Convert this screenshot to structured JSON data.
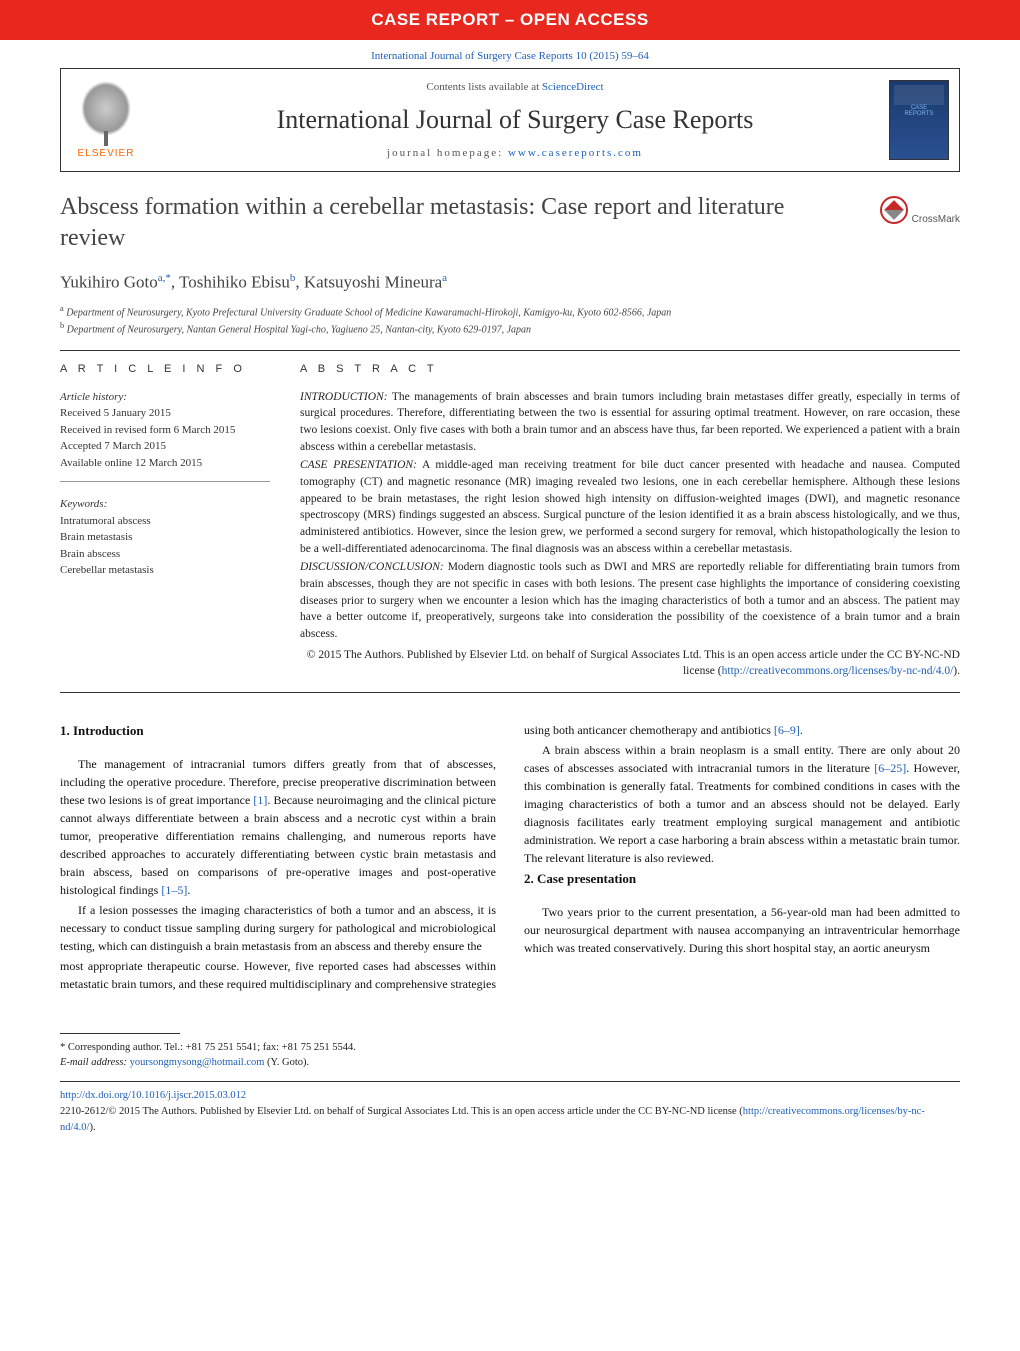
{
  "banner": "CASE REPORT – OPEN ACCESS",
  "citation": "International Journal of Surgery Case Reports 10 (2015) 59–64",
  "header": {
    "contents_prefix": "Contents lists available at ",
    "contents_link": "ScienceDirect",
    "journal_title": "International Journal of Surgery Case Reports",
    "homepage_prefix": "journal homepage: ",
    "homepage_link": "www.casereports.com",
    "elsevier_label": "ELSEVIER"
  },
  "crossmark_label": "CrossMark",
  "article": {
    "title": "Abscess formation within a cerebellar metastasis: Case report and literature review",
    "authors_html": "Yukihiro Goto<sup>a,*</sup>, Toshihiko Ebisu<sup>b</sup>, Katsuyoshi Mineura<sup>a</sup>",
    "affiliations": [
      "a Department of Neurosurgery, Kyoto Prefectural University Graduate School of Medicine Kawaramachi-Hirokoji, Kamigyo-ku, Kyoto 602-8566, Japan",
      "b Department of Neurosurgery, Nantan General Hospital Yagi-cho, Yagiueno 25, Nantan-city, Kyoto 629-0197, Japan"
    ]
  },
  "article_info": {
    "heading": "a r t i c l e   i n f o",
    "history_label": "Article history:",
    "history": [
      "Received 5 January 2015",
      "Received in revised form 6 March 2015",
      "Accepted 7 March 2015",
      "Available online 12 March 2015"
    ],
    "keywords_label": "Keywords:",
    "keywords": [
      "Intratumoral abscess",
      "Brain metastasis",
      "Brain abscess",
      "Cerebellar metastasis"
    ]
  },
  "abstract": {
    "heading": "a b s t r a c t",
    "intro_label": "INTRODUCTION:",
    "intro": " The managements of brain abscesses and brain tumors including brain metastases differ greatly, especially in terms of surgical procedures. Therefore, differentiating between the two is essential for assuring optimal treatment. However, on rare occasion, these two lesions coexist. Only five cases with both a brain tumor and an abscess have thus, far been reported. We experienced a patient with a brain abscess within a cerebellar metastasis.",
    "case_label": "CASE PRESENTATION:",
    "case": " A middle-aged man receiving treatment for bile duct cancer presented with headache and nausea. Computed tomography (CT) and magnetic resonance (MR) imaging revealed two lesions, one in each cerebellar hemisphere. Although these lesions appeared to be brain metastases, the right lesion showed high intensity on diffusion-weighted images (DWI), and magnetic resonance spectroscopy (MRS) findings suggested an abscess. Surgical puncture of the lesion identified it as a brain abscess histologically, and we thus, administered antibiotics. However, since the lesion grew, we performed a second surgery for removal, which histopathologically the lesion to be a well-differentiated adenocarcinoma. The final diagnosis was an abscess within a cerebellar metastasis.",
    "disc_label": "DISCUSSION/CONCLUSION:",
    "disc": " Modern diagnostic tools such as DWI and MRS are reportedly reliable for differentiating brain tumors from brain abscesses, though they are not specific in cases with both lesions. The present case highlights the importance of considering coexisting diseases prior to surgery when we encounter a lesion which has the imaging characteristics of both a tumor and an abscess. The patient may have a better outcome if, preoperatively, surgeons take into consideration the possibility of the coexistence of a brain tumor and a brain abscess.",
    "copyright": "© 2015 The Authors. Published by Elsevier Ltd. on behalf of Surgical Associates Ltd. This is an open access article under the CC BY-NC-ND license (",
    "cc_link": "http://creativecommons.org/licenses/by-nc-nd/4.0/",
    "copyright_end": ")."
  },
  "body": {
    "s1_title": "1. Introduction",
    "s1_p1": "The management of intracranial tumors differs greatly from that of abscesses, including the operative procedure. Therefore, precise preoperative discrimination between these two lesions is of great importance ",
    "s1_p1_ref": "[1]",
    "s1_p1b": ". Because neuroimaging and the clinical picture cannot always differentiate between a brain abscess and a necrotic cyst within a brain tumor, preoperative differentiation remains challenging, and numerous reports have described approaches to accurately differentiating between cystic brain metastasis and brain abscess, based on comparisons of pre-operative images and post-operative histological findings ",
    "s1_p1_ref2": "[1–5]",
    "s1_p1c": ".",
    "s1_p2": "If a lesion possesses the imaging characteristics of both a tumor and an abscess, it is necessary to conduct tissue sampling during surgery for pathological and microbiological testing, which can distinguish a brain metastasis from an abscess and thereby ensure the",
    "s1_p3": "most appropriate therapeutic course. However, five reported cases had abscesses within metastatic brain tumors, and these required multidisciplinary and comprehensive strategies using both anticancer chemotherapy and antibiotics ",
    "s1_p3_ref": "[6–9]",
    "s1_p3b": ".",
    "s1_p4": "A brain abscess within a brain neoplasm is a small entity. There are only about 20 cases of abscesses associated with intracranial tumors in the literature ",
    "s1_p4_ref": "[6–25]",
    "s1_p4b": ". However, this combination is generally fatal. Treatments for combined conditions in cases with the imaging characteristics of both a tumor and an abscess should not be delayed. Early diagnosis facilitates early treatment employing surgical management and antibiotic administration. We report a case harboring a brain abscess within a metastatic brain tumor. The relevant literature is also reviewed.",
    "s2_title": "2. Case presentation",
    "s2_p1": "Two years prior to the current presentation, a 56-year-old man had been admitted to our neurosurgical department with nausea accompanying an intraventricular hemorrhage which was treated conservatively. During this short hospital stay, an aortic aneurysm"
  },
  "footnote": {
    "corr": "* Corresponding author. Tel.: +81 75 251 5541; fax: +81 75 251 5544.",
    "email_label": "E-mail address: ",
    "email": "yoursongmysong@hotmail.com",
    "email_suffix": " (Y. Goto)."
  },
  "bottom": {
    "doi": "http://dx.doi.org/10.1016/j.ijscr.2015.03.012",
    "issn_line": "2210-2612/© 2015 The Authors. Published by Elsevier Ltd. on behalf of Surgical Associates Ltd. This is an open access article under the CC BY-NC-ND license (",
    "cc_link": "http://creativecommons.org/licenses/by-nc-nd/4.0/",
    "issn_end": ")."
  },
  "colors": {
    "banner_bg": "#e8281e",
    "link": "#2060b8",
    "elsevier_orange": "#ff6600"
  }
}
